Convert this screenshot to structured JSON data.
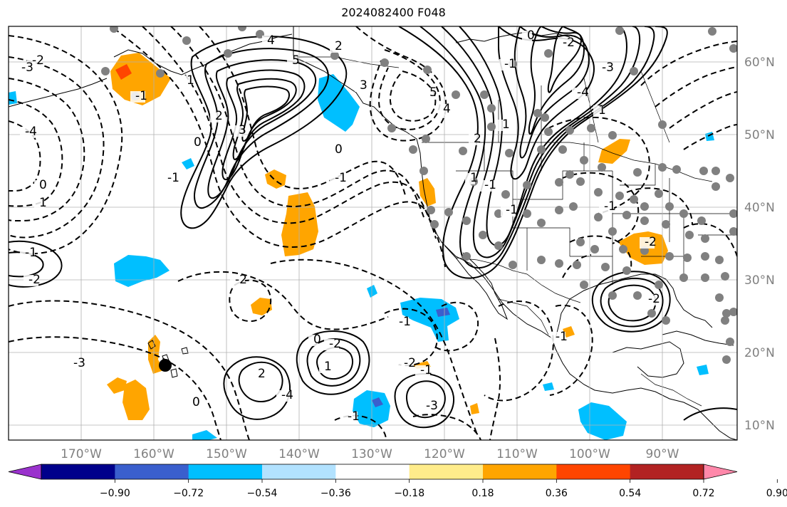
{
  "title": "2024082400 F048",
  "longitude_labels": [
    "170°W",
    "160°W",
    "150°W",
    "140°W",
    "130°W",
    "120°W",
    "110°W",
    "100°W",
    "90°W"
  ],
  "latitude_labels": [
    "60°N",
    "50°N",
    "40°N",
    "30°N",
    "20°N",
    "10°N"
  ],
  "colorbar": {
    "colors": [
      "#9a32cd",
      "#00008b",
      "#3a5fcd",
      "#00bfff",
      "#b2e2ff",
      "#ffffff",
      "#ffec8b",
      "#ffa500",
      "#ff4500",
      "#b22222",
      "#ff88aa"
    ],
    "tick_labels": [
      "−0.90",
      "−0.72",
      "−0.54",
      "−0.36",
      "−0.18",
      "0.18",
      "0.36",
      "0.54",
      "0.72",
      "0.90"
    ]
  },
  "contour_labels": [
    "4",
    "5",
    "3",
    "2",
    "1",
    "0",
    "-1",
    "-2",
    "-3",
    "-4",
    "2",
    "3",
    "4",
    "5",
    "-1",
    "-2",
    "-3",
    "-4",
    "1",
    "0",
    "1",
    "2",
    "1",
    "0",
    "-1",
    "-1",
    "0",
    "1",
    "-1",
    "-2",
    "-3",
    "-2",
    "-1",
    "0",
    "-2",
    "1",
    "2",
    "-4",
    "-3",
    "-2",
    "-1",
    "-1",
    "0",
    "-1",
    "-1",
    "-1",
    "-2",
    "-2",
    "-1"
  ],
  "colors": {
    "grid": "#b0b0b0",
    "coast": "#000000",
    "station": "#808080",
    "positive": "#ffa500",
    "negative": "#00bfff",
    "axis_label": "#808080"
  }
}
